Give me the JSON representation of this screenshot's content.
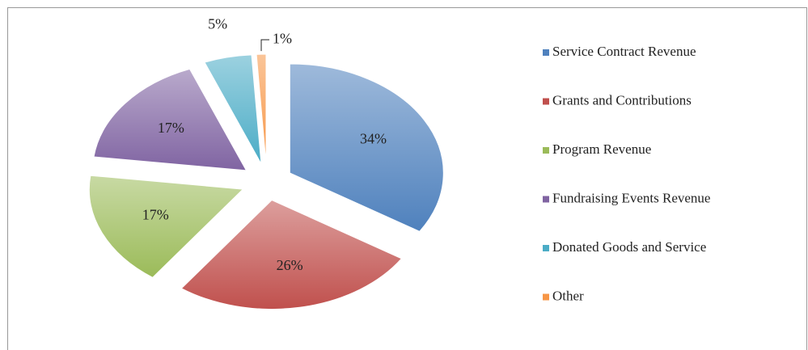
{
  "chart_data": {
    "type": "pie",
    "categories": [
      "Service Contract Revenue",
      "Grants and Contributions",
      "Program Revenue",
      "Fundraising Events Revenue",
      "Donated Goods and Service",
      "Other"
    ],
    "values": [
      34,
      26,
      17,
      17,
      5,
      1
    ],
    "value_labels": [
      "34%",
      "26%",
      "17%",
      "17%",
      "5%",
      "1%"
    ],
    "colors": [
      "#4f81bd",
      "#c0504d",
      "#9bbb59",
      "#8064a2",
      "#4bacc6",
      "#f79646"
    ],
    "legend": "right"
  }
}
